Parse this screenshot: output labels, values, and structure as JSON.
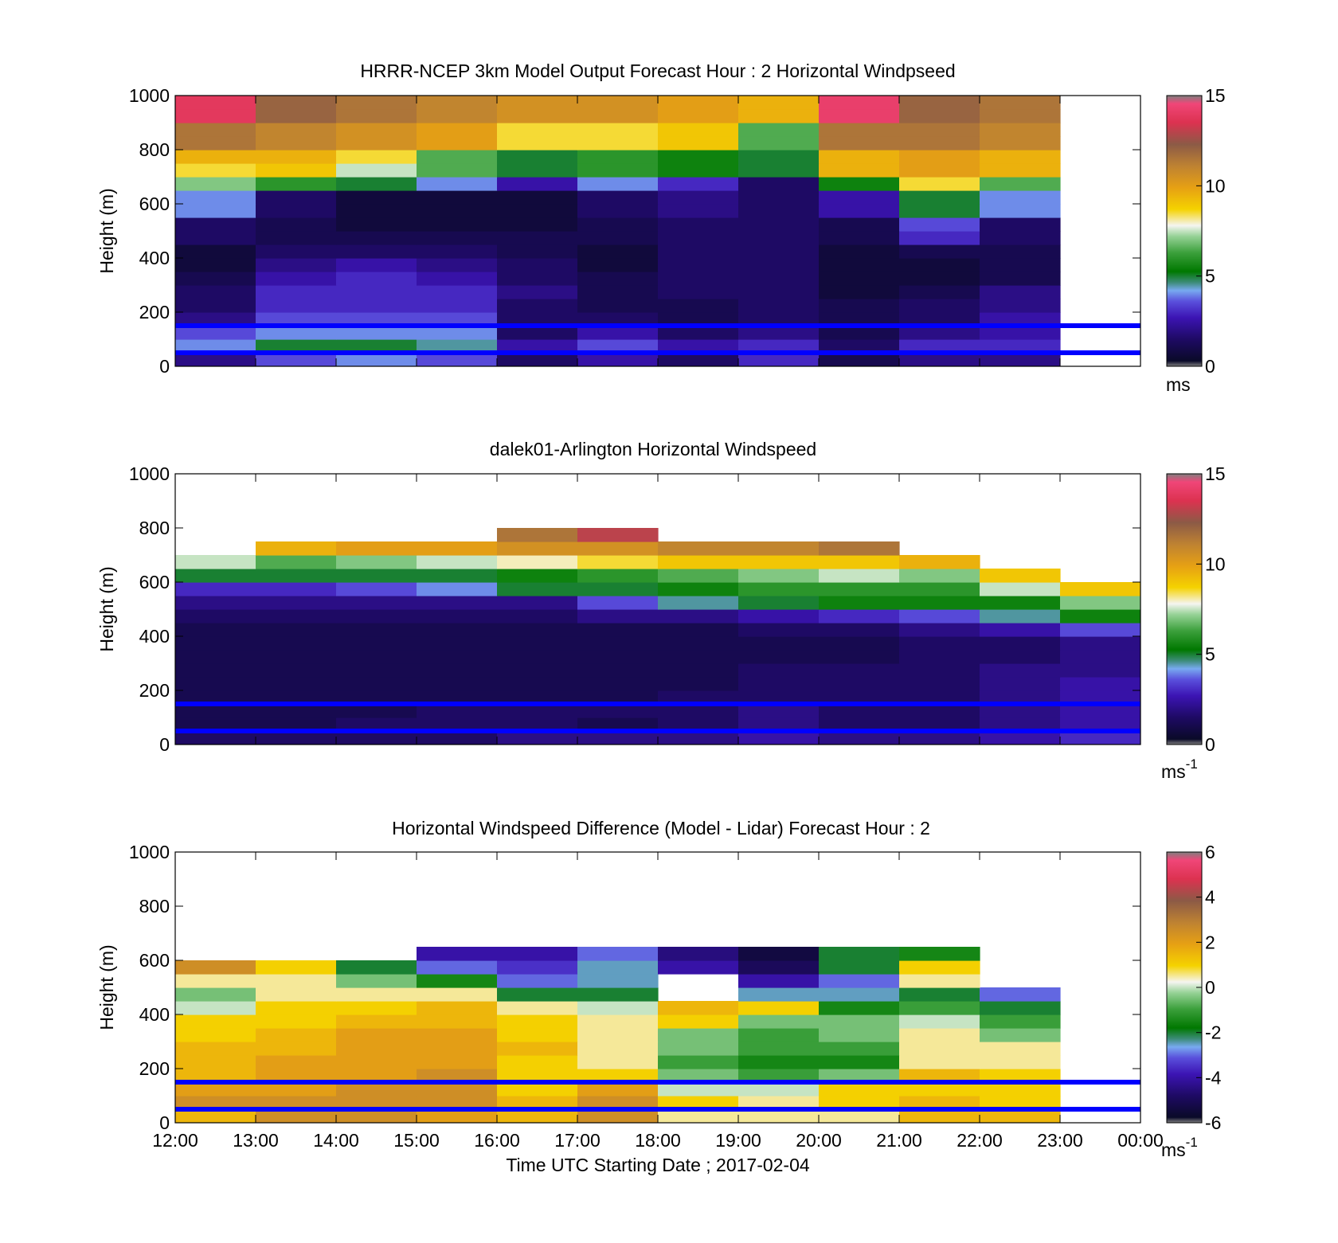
{
  "figure": {
    "xlabel": "Time UTC  Starting Date ; 2017-02-04"
  },
  "x_ticks": [
    "12:00",
    "13:00",
    "14:00",
    "15:00",
    "16:00",
    "17:00",
    "18:00",
    "19:00",
    "20:00",
    "21:00",
    "22:00",
    "23:00",
    "00:00"
  ],
  "guide_lines": {
    "color": "#0000ff",
    "heights_m": [
      150,
      50
    ]
  },
  "chart_data": [
    {
      "type": "heatmap",
      "title": "HRRR-NCEP 3km Model Output   Forecast Hour : 2 Horizontal Windpseed",
      "ylabel": "Height (m)",
      "ylim": [
        0,
        1000
      ],
      "yticks": [
        0,
        200,
        400,
        600,
        800,
        1000
      ],
      "colorbar": {
        "min": 0,
        "max": 15,
        "ticks": [
          0,
          5,
          10,
          15
        ],
        "unit": "ms"
      },
      "x_hours": [
        "12:00",
        "13:00",
        "14:00",
        "15:00",
        "16:00",
        "17:00",
        "18:00",
        "19:00",
        "20:00",
        "21:00",
        "22:00"
      ],
      "heights_m": [
        25,
        75,
        125,
        175,
        225,
        275,
        325,
        375,
        425,
        475,
        525,
        575,
        625,
        675,
        725,
        775,
        825,
        875,
        925,
        975
      ],
      "values_ms": [
        [
          2.0,
          3.5,
          4.0,
          3.5,
          1.5,
          2.5,
          1.5,
          3.0,
          1.0,
          2.0,
          2.0
        ],
        [
          4.0,
          5.0,
          5.0,
          4.5,
          2.5,
          3.5,
          2.5,
          3.0,
          1.5,
          3.0,
          3.0
        ],
        [
          3.5,
          4.0,
          4.0,
          4.0,
          1.5,
          2.5,
          1.5,
          2.0,
          1.0,
          2.0,
          2.5
        ],
        [
          2.0,
          3.5,
          3.5,
          3.5,
          1.5,
          1.5,
          1.0,
          1.5,
          1.0,
          1.5,
          2.5
        ],
        [
          1.5,
          3.0,
          3.0,
          3.0,
          1.5,
          1.0,
          1.0,
          1.5,
          1.0,
          1.5,
          2.0
        ],
        [
          1.5,
          3.0,
          3.0,
          3.0,
          2.0,
          1.0,
          1.5,
          1.5,
          0.5,
          1.0,
          2.0
        ],
        [
          1.0,
          2.5,
          3.0,
          2.5,
          1.5,
          1.0,
          1.5,
          1.5,
          0.5,
          0.5,
          1.0
        ],
        [
          0.5,
          2.0,
          2.5,
          2.0,
          1.5,
          0.5,
          1.5,
          1.5,
          0.5,
          0.5,
          1.0
        ],
        [
          0.5,
          1.5,
          1.5,
          1.5,
          1.0,
          0.5,
          1.5,
          1.5,
          0.5,
          1.0,
          1.0
        ],
        [
          1.5,
          1.0,
          1.0,
          1.0,
          1.0,
          1.0,
          1.5,
          1.5,
          1.0,
          3.0,
          1.5
        ],
        [
          1.5,
          1.0,
          0.5,
          0.5,
          0.5,
          1.0,
          1.5,
          1.5,
          1.0,
          3.5,
          1.5
        ],
        [
          4.0,
          1.5,
          0.5,
          0.5,
          0.5,
          1.5,
          2.0,
          1.5,
          2.5,
          5.0,
          4.0
        ],
        [
          4.0,
          1.5,
          0.5,
          0.5,
          0.5,
          1.5,
          2.0,
          1.5,
          2.5,
          5.0,
          4.0
        ],
        [
          7.0,
          6.0,
          5.0,
          4.0,
          2.5,
          4.0,
          3.0,
          1.5,
          5.5,
          8.5,
          6.5
        ],
        [
          8.5,
          9.0,
          7.5,
          6.5,
          5.0,
          6.0,
          5.5,
          5.0,
          9.5,
          10.0,
          9.5
        ],
        [
          9.5,
          9.5,
          8.5,
          6.5,
          5.0,
          6.0,
          5.5,
          5.0,
          9.5,
          10.0,
          9.5
        ],
        [
          11.5,
          11.0,
          10.5,
          10.0,
          8.5,
          8.5,
          9.0,
          6.5,
          11.5,
          11.5,
          11.0
        ],
        [
          11.5,
          11.0,
          10.5,
          10.0,
          8.5,
          8.5,
          9.0,
          6.5,
          11.5,
          11.5,
          11.0
        ],
        [
          14.0,
          12.0,
          11.5,
          11.0,
          10.5,
          10.5,
          10.0,
          9.5,
          14.5,
          12.0,
          11.5
        ],
        [
          14.0,
          12.0,
          11.5,
          11.0,
          10.5,
          10.5,
          10.0,
          9.5,
          14.5,
          12.0,
          11.5
        ]
      ]
    },
    {
      "type": "heatmap",
      "title": "dalek01-Arlington  Horizontal Windspeed",
      "ylabel": "Height (m)",
      "ylim": [
        0,
        1000
      ],
      "yticks": [
        0,
        200,
        400,
        600,
        800,
        1000
      ],
      "colorbar": {
        "min": 0,
        "max": 15,
        "ticks": [
          0,
          5,
          10,
          15
        ],
        "unit": "ms",
        "unit_exponent": "-1"
      },
      "x_hours": [
        "12:00",
        "13:00",
        "14:00",
        "15:00",
        "16:00",
        "17:00",
        "18:00",
        "19:00",
        "20:00",
        "21:00",
        "22:00",
        "23:00"
      ],
      "heights_m": [
        25,
        75,
        125,
        175,
        225,
        275,
        325,
        375,
        425,
        475,
        525,
        575,
        625,
        675,
        725,
        775,
        825,
        875,
        925,
        975
      ],
      "values_ms": [
        [
          1.5,
          1.5,
          1.5,
          1.5,
          2.0,
          2.0,
          2.0,
          2.5,
          2.0,
          2.0,
          2.5,
          3.0
        ],
        [
          1.0,
          1.0,
          1.5,
          1.5,
          1.5,
          1.0,
          1.5,
          2.0,
          1.5,
          1.5,
          2.0,
          2.5
        ],
        [
          1.0,
          1.0,
          1.0,
          1.5,
          1.5,
          1.5,
          1.5,
          2.0,
          1.5,
          1.5,
          2.0,
          2.5
        ],
        [
          1.0,
          1.0,
          1.0,
          1.0,
          1.0,
          1.0,
          1.5,
          1.5,
          1.5,
          1.5,
          2.0,
          2.5
        ],
        [
          1.0,
          1.0,
          1.0,
          1.0,
          1.0,
          1.0,
          1.0,
          1.5,
          1.5,
          1.5,
          2.0,
          2.5
        ],
        [
          1.0,
          1.0,
          1.0,
          1.0,
          1.0,
          1.0,
          1.0,
          1.5,
          1.5,
          1.5,
          2.0,
          2.0
        ],
        [
          1.0,
          1.0,
          1.0,
          1.0,
          1.0,
          1.0,
          1.0,
          1.0,
          1.0,
          1.5,
          1.5,
          2.0
        ],
        [
          1.0,
          1.0,
          1.0,
          1.0,
          1.0,
          1.0,
          1.0,
          1.0,
          1.0,
          1.5,
          1.5,
          2.0
        ],
        [
          1.0,
          1.0,
          1.0,
          1.0,
          1.0,
          1.0,
          1.0,
          1.5,
          1.5,
          2.0,
          2.5,
          3.5
        ],
        [
          1.5,
          1.5,
          1.5,
          1.5,
          1.5,
          2.0,
          2.0,
          2.5,
          3.0,
          3.5,
          4.5,
          5.5
        ],
        [
          2.0,
          2.0,
          2.0,
          2.0,
          2.0,
          3.5,
          4.5,
          5.0,
          5.5,
          5.5,
          5.5,
          7.0
        ],
        [
          3.0,
          3.0,
          3.5,
          4.0,
          5.0,
          5.0,
          5.5,
          6.0,
          6.0,
          6.0,
          7.5,
          9.0
        ],
        [
          5.0,
          5.0,
          5.0,
          5.0,
          5.5,
          6.0,
          6.5,
          7.0,
          7.5,
          7.0,
          9.0,
          null
        ],
        [
          7.5,
          6.5,
          7.0,
          7.5,
          8.0,
          8.5,
          9.0,
          9.0,
          9.0,
          9.5,
          null,
          null
        ],
        [
          null,
          9.5,
          10.0,
          10.0,
          10.5,
          10.5,
          11.0,
          11.0,
          11.5,
          null,
          null,
          null
        ],
        [
          null,
          null,
          null,
          null,
          11.5,
          13.0,
          null,
          null,
          null,
          null,
          null,
          null
        ],
        [
          null,
          null,
          null,
          null,
          null,
          null,
          null,
          null,
          null,
          null,
          null,
          null
        ],
        [
          null,
          null,
          null,
          null,
          null,
          null,
          null,
          null,
          null,
          null,
          null,
          null
        ],
        [
          null,
          null,
          null,
          null,
          null,
          null,
          null,
          null,
          null,
          null,
          null,
          null
        ],
        [
          null,
          null,
          null,
          null,
          null,
          null,
          null,
          null,
          null,
          null,
          null,
          null
        ]
      ]
    },
    {
      "type": "heatmap",
      "title": "Horizontal Windspeed Difference (Model - Lidar) Forecast Hour : 2",
      "ylabel": "Height (m)",
      "ylim": [
        0,
        1000
      ],
      "yticks": [
        0,
        200,
        400,
        600,
        800,
        1000
      ],
      "colorbar": {
        "min": -6,
        "max": 6,
        "ticks": [
          -6,
          -4,
          -2,
          0,
          2,
          4,
          6
        ],
        "unit": "ms",
        "unit_exponent": "-1"
      },
      "x_hours": [
        "12:00",
        "13:00",
        "14:00",
        "15:00",
        "16:00",
        "17:00",
        "18:00",
        "19:00",
        "20:00",
        "21:00",
        "22:00"
      ],
      "heights_m": [
        25,
        75,
        125,
        175,
        225,
        275,
        325,
        375,
        425,
        475,
        525,
        575,
        625,
        675,
        725,
        775
      ],
      "values_ms": [
        [
          1.5,
          2.5,
          2.5,
          2.0,
          1.5,
          2.5,
          0.5,
          0.5,
          0.5,
          1.5,
          1.5
        ],
        [
          2.5,
          2.5,
          2.5,
          2.5,
          1.5,
          2.5,
          1.0,
          0.5,
          1.0,
          1.5,
          1.0
        ],
        [
          2.0,
          2.0,
          2.5,
          2.5,
          1.0,
          2.0,
          0.0,
          0.0,
          1.0,
          1.0,
          1.0
        ],
        [
          1.5,
          2.0,
          2.0,
          2.5,
          1.0,
          1.0,
          -0.5,
          -1.0,
          -0.5,
          1.5,
          1.0
        ],
        [
          1.5,
          2.0,
          2.0,
          2.0,
          1.0,
          0.5,
          -1.0,
          -1.5,
          -1.5,
          0.5,
          0.5
        ],
        [
          1.5,
          1.5,
          2.0,
          2.0,
          1.5,
          0.5,
          -0.5,
          -1.0,
          -1.0,
          0.5,
          0.5
        ],
        [
          1.0,
          1.5,
          2.0,
          2.0,
          1.0,
          0.5,
          -0.5,
          -1.0,
          -0.5,
          0.5,
          -0.5
        ],
        [
          1.0,
          1.0,
          1.5,
          1.5,
          1.0,
          0.5,
          1.0,
          -0.5,
          -0.5,
          0.0,
          -1.0
        ],
        [
          0.0,
          1.0,
          1.0,
          1.5,
          0.5,
          0.0,
          1.5,
          1.0,
          -1.5,
          -1.0,
          -2.0
        ],
        [
          -0.5,
          0.5,
          0.5,
          0.5,
          -2.0,
          -2.0,
          null,
          -2.5,
          -2.5,
          -2.0,
          -3.0
        ],
        [
          0.5,
          0.5,
          -0.5,
          -1.5,
          -3.0,
          -2.5,
          null,
          -4.0,
          -3.0,
          0.5,
          null
        ],
        [
          2.5,
          1.0,
          -2.0,
          -3.0,
          -3.5,
          -2.5,
          -4.0,
          -5.0,
          -2.0,
          1.0,
          null
        ],
        [
          null,
          null,
          null,
          -4.0,
          -4.0,
          -3.0,
          -4.5,
          -5.5,
          -2.0,
          -1.5,
          null
        ],
        [
          null,
          null,
          null,
          null,
          null,
          null,
          null,
          null,
          null,
          null,
          null
        ],
        [
          null,
          null,
          null,
          null,
          null,
          null,
          null,
          null,
          null,
          null,
          null
        ],
        [
          null,
          null,
          null,
          null,
          null,
          null,
          null,
          null,
          null,
          null,
          null
        ]
      ]
    }
  ]
}
